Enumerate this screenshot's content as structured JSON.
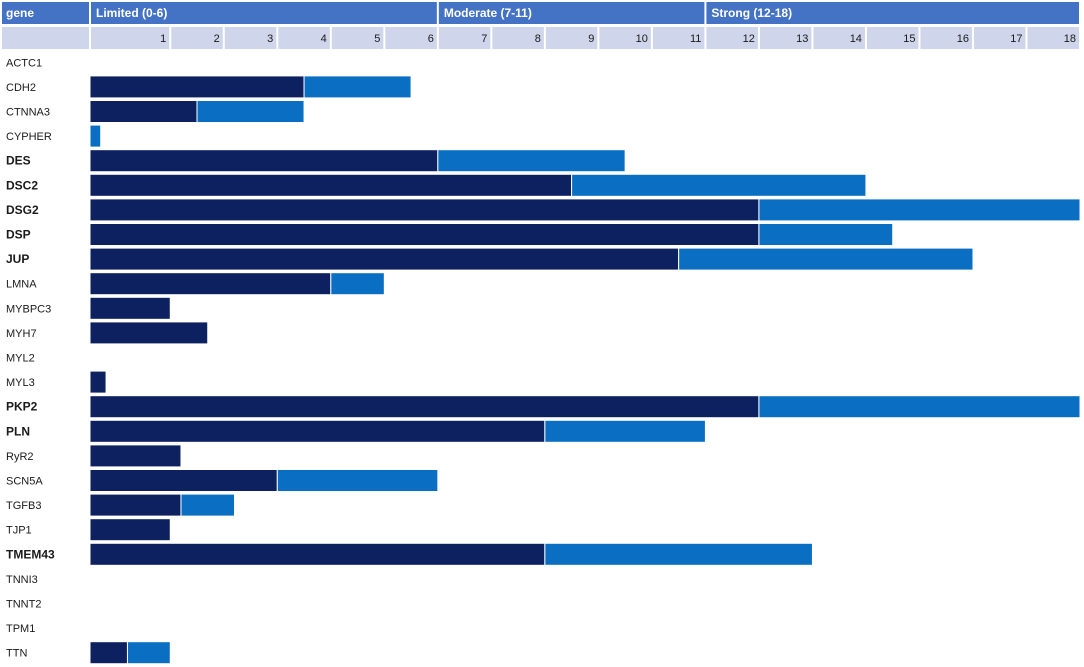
{
  "chart_data": {
    "type": "bar",
    "stacked": true,
    "orientation": "horizontal",
    "header": {
      "gene_label": "gene",
      "bands": [
        {
          "label": "Limited (0-6)",
          "from": 0,
          "to": 6.5
        },
        {
          "label": "Moderate (7-11)",
          "from": 6.5,
          "to": 11.5
        },
        {
          "label": "Strong (12-18)",
          "from": 11.5,
          "to": 18.5
        }
      ]
    },
    "xticks": [
      "1",
      "2",
      "3",
      "4",
      "5",
      "6",
      "7",
      "8",
      "9",
      "10",
      "11",
      "12",
      "13",
      "14",
      "15",
      "16",
      "17",
      "18"
    ],
    "xlim": [
      0,
      18.5
    ],
    "categories": [
      "ACTC1",
      "CDH2",
      "CTNNA3",
      "CYPHER",
      "DES",
      "DSC2",
      "DSG2",
      "DSP",
      "JUP",
      "LMNA",
      "MYBPC3",
      "MYH7",
      "MYL2",
      "MYL3",
      "PKP2",
      "PLN",
      "RyR2",
      "SCN5A",
      "TGFB3",
      "TJP1",
      "TMEM43",
      "TNNI3",
      "TNNT2",
      "TPM1",
      "TTN"
    ],
    "bold_categories": [
      "DES",
      "DSC2",
      "DSG2",
      "DSP",
      "JUP",
      "PKP2",
      "PLN",
      "TMEM43"
    ],
    "series": [
      {
        "values": [
          0,
          4,
          2,
          0,
          6.5,
          9,
          12.5,
          12.5,
          11,
          4.5,
          1.5,
          2.2,
          0,
          0.3,
          12.5,
          8.5,
          1.7,
          3.5,
          1.7,
          1.5,
          8.5,
          0,
          0,
          0,
          0.7
        ]
      },
      {
        "values": [
          0,
          2,
          2,
          0.2,
          3.5,
          5.5,
          6,
          2.5,
          5.5,
          1,
          0,
          0,
          0,
          0,
          6,
          3,
          0,
          3,
          1,
          0,
          5,
          0,
          0,
          0,
          0.8
        ]
      }
    ]
  },
  "colors": {
    "header_band": "#4472c4",
    "tick_row": "#cfd5ea",
    "series_1": "#0d2060",
    "series_2": "#0a6fc2"
  }
}
